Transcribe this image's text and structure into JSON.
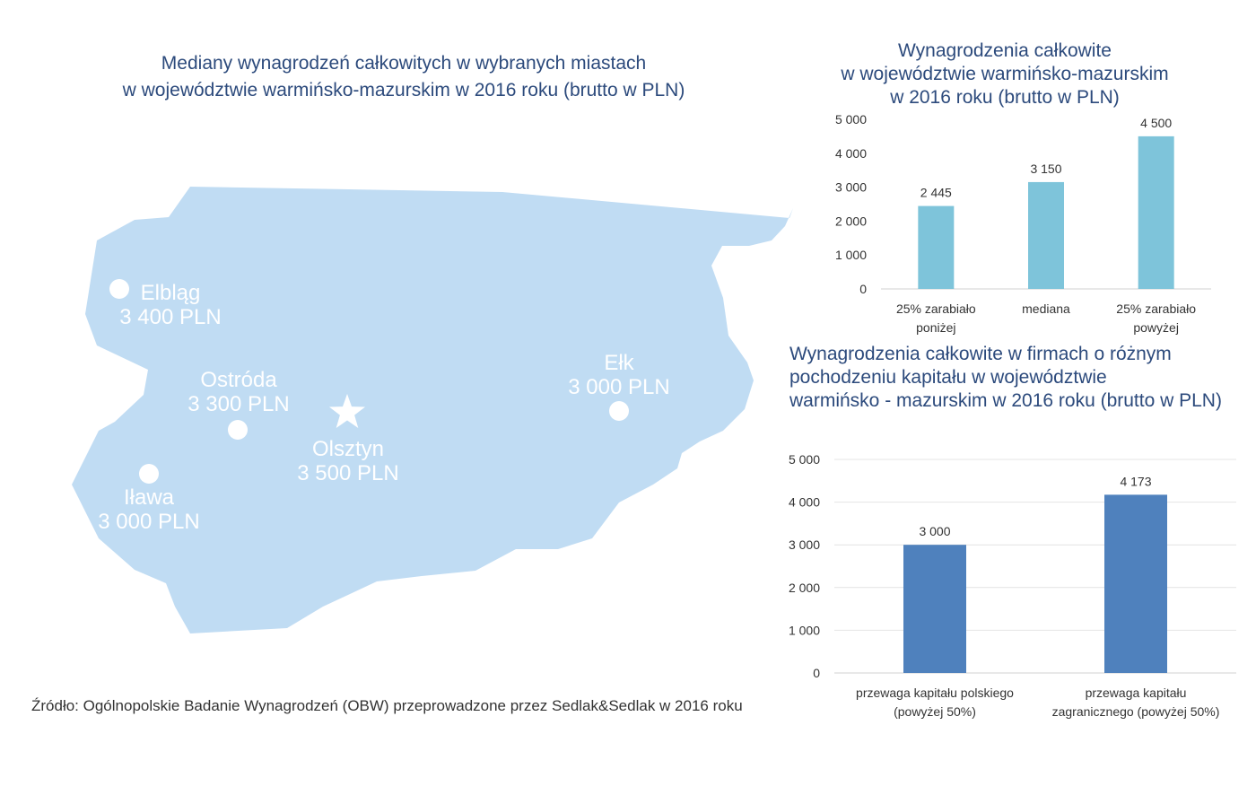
{
  "map": {
    "title_lines": [
      "Mediany wynagrodzeń całkowitych w wybranych miastach",
      "w województwie warmińsko-mazurskim w 2016 roku (brutto w PLN)"
    ],
    "region_color": "#c0dcf3",
    "cities": [
      {
        "name": "Elbląg",
        "value": "3 400 PLN",
        "marker": "circle"
      },
      {
        "name": "Ostróda",
        "value": "3 300 PLN",
        "marker": "circle"
      },
      {
        "name": "Olsztyn",
        "value": "3 500 PLN",
        "marker": "star"
      },
      {
        "name": "Iława",
        "value": "3 000 PLN",
        "marker": "circle"
      },
      {
        "name": "Ełk",
        "value": "3 000 PLN",
        "marker": "circle"
      }
    ]
  },
  "source": {
    "text": "Źródło: Ogólnopolskie Badanie Wynagrodzeń (OBW) przeprowadzone przez Sedlak&Sedlak w 2016 roku"
  },
  "chart_data": [
    {
      "type": "bar",
      "title_lines": [
        "Wynagrodzenia całkowite",
        "w województwie warmińsko-mazurskim",
        "w 2016 roku (brutto w PLN)"
      ],
      "categories": [
        [
          "25% zarabiało",
          "poniżej"
        ],
        [
          "mediana"
        ],
        [
          "25% zarabiało",
          "powyżej"
        ]
      ],
      "values": [
        2445,
        3150,
        4500
      ],
      "value_labels": [
        "2 445",
        "3 150",
        "4 500"
      ],
      "ylim": [
        0,
        5000
      ],
      "yticks": [
        0,
        1000,
        2000,
        3000,
        4000,
        5000
      ],
      "ytick_labels": [
        "0",
        "1 000",
        "2 000",
        "3 000",
        "4 000",
        "5 000"
      ],
      "color": "#7ec4da",
      "grid": false
    },
    {
      "type": "bar",
      "title_lines": [
        "Wynagrodzenia całkowite w firmach o różnym",
        "pochodzeniu kapitału  w województwie",
        "warmińsko - mazurskim w 2016 roku (brutto w PLN)"
      ],
      "categories": [
        [
          "przewaga kapitału polskiego",
          "(powyżej 50%)"
        ],
        [
          "przewaga kapitału",
          "zagranicznego (powyżej 50%)"
        ]
      ],
      "values": [
        3000,
        4173
      ],
      "value_labels": [
        "3 000",
        "4 173"
      ],
      "ylim": [
        0,
        5000
      ],
      "yticks": [
        0,
        1000,
        2000,
        3000,
        4000,
        5000
      ],
      "ytick_labels": [
        "0",
        "1 000",
        "2 000",
        "3 000",
        "4 000",
        "5 000"
      ],
      "color": "#4f81bd",
      "grid": true
    }
  ]
}
